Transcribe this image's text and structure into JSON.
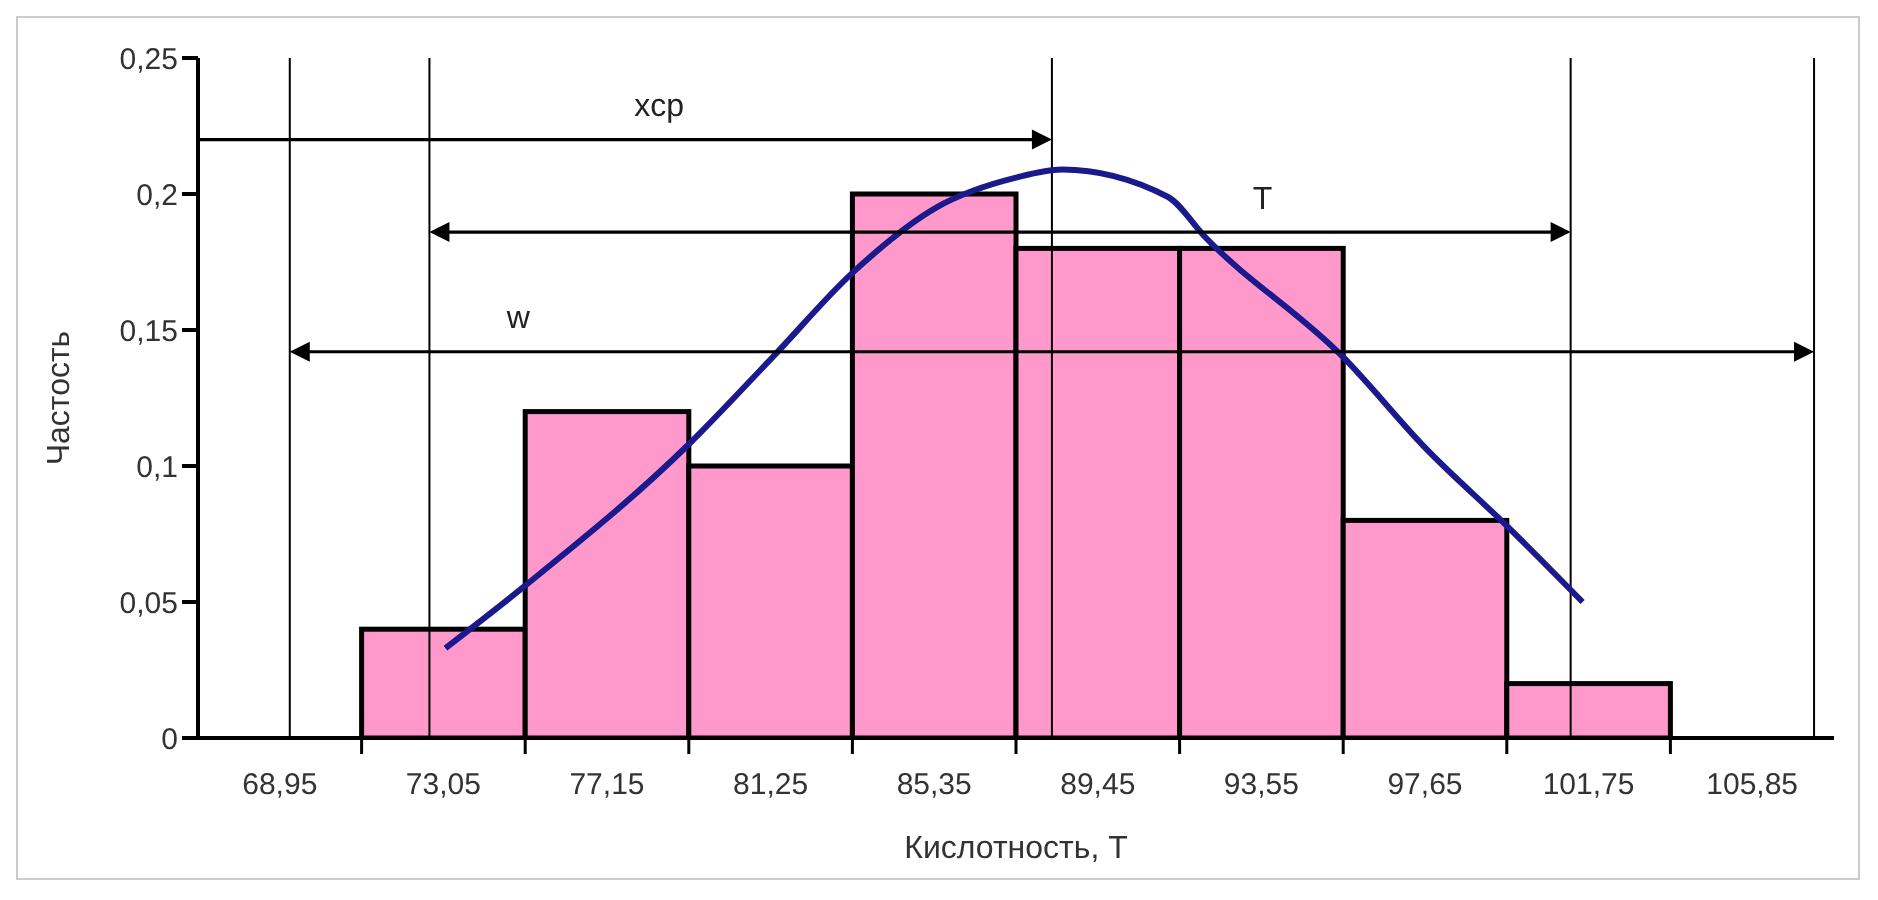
{
  "chart_data": {
    "type": "histogram",
    "xlabel": "Кислотность, T",
    "ylabel": "Частость",
    "bins": [
      71,
      75.1,
      79.2,
      83.3,
      87.4,
      91.5,
      95.6,
      99.7,
      103.8
    ],
    "values": [
      0.04,
      0.12,
      0.1,
      0.2,
      0.18,
      0.18,
      0.08,
      0.02
    ],
    "color": "#ff99cc",
    "series": [
      {
        "type": "line",
        "color": "#1a1a8c",
        "x": [
          73.1,
          75.1,
          79.2,
          81.3,
          83.3,
          85.4,
          87.4,
          88.55,
          91.2,
          92.15,
          95.6,
          97.7,
          99.7,
          101.6
        ],
        "values": [
          0.033,
          0.056,
          0.108,
          0.14,
          0.171,
          0.195,
          0.206,
          0.209,
          0.199,
          0.184,
          0.14,
          0.106,
          0.078,
          0.05
        ]
      }
    ],
    "xlim": [
      66.9,
      107.9
    ],
    "xticks": [
      {
        "value": 68.95,
        "label": "68,95"
      },
      {
        "value": 71,
        "label": null
      },
      {
        "value": 73.05,
        "label": "73,05"
      },
      {
        "value": 75.1,
        "label": null
      },
      {
        "value": 77.15,
        "label": "77,15"
      },
      {
        "value": 79.2,
        "label": null
      },
      {
        "value": 81.25,
        "label": "81,25"
      },
      {
        "value": 83.3,
        "label": null
      },
      {
        "value": 85.35,
        "label": "85,35"
      },
      {
        "value": 87.4,
        "label": null
      },
      {
        "value": 89.45,
        "label": "89,45"
      },
      {
        "value": 91.5,
        "label": null
      },
      {
        "value": 93.55,
        "label": "93,55"
      },
      {
        "value": 95.6,
        "label": null
      },
      {
        "value": 97.65,
        "label": "97,65"
      },
      {
        "value": 99.7,
        "label": null
      },
      {
        "value": 101.75,
        "label": "101,75"
      },
      {
        "value": 103.8,
        "label": null
      },
      {
        "value": 105.85,
        "label": "105,85"
      }
    ],
    "ylim": [
      0,
      0.25
    ],
    "yticks": [
      0,
      {
        "value": 0.05,
        "label": "0,05"
      },
      {
        "value": 0.1,
        "label": "0,1"
      },
      {
        "value": 0.15,
        "label": "0,15"
      },
      {
        "value": 0.2,
        "label": "0,2"
      },
      {
        "value": 0.25,
        "label": "0,25"
      }
    ],
    "ref_lines": [
      {
        "axis": "x",
        "value": 69.2,
        "color": "#000000"
      },
      {
        "axis": "x",
        "value": 72.7,
        "color": "#000000"
      },
      {
        "axis": "x",
        "value": 88.3,
        "color": "#000000"
      },
      {
        "axis": "x",
        "value": 101.3,
        "color": "#000000"
      },
      {
        "axis": "x",
        "value": 107.4,
        "color": "#000000"
      }
    ],
    "annotations": [
      "xcp",
      "T",
      "w"
    ],
    "grid": false,
    "legend": false
  }
}
